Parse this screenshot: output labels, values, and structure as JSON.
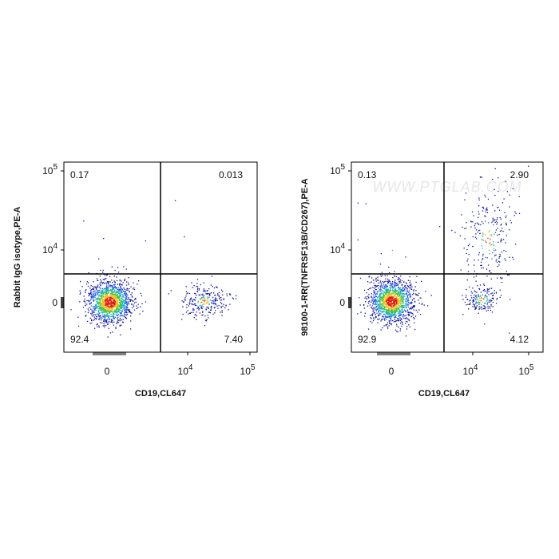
{
  "watermark": "WWW.PTGLAB.COM",
  "panels": [
    {
      "y_label": "Rabbit IgG isotype,PE-A",
      "x_label": "CD19,CL647",
      "quadrants": {
        "upper_left": "0.17",
        "upper_right": "0.013",
        "lower_left": "92.4",
        "lower_right": "7.40"
      },
      "y_ticks": [
        {
          "base": "10",
          "exp": "5"
        },
        {
          "base": "10",
          "exp": "4"
        },
        {
          "base": "0"
        }
      ],
      "x_ticks": [
        {
          "base": "0"
        },
        {
          "base": "10",
          "exp": "4"
        },
        {
          "base": "10",
          "exp": "5"
        }
      ]
    },
    {
      "y_label": "98100-1-RR(TNFRSF13B/CD267),PE-A",
      "x_label": "CD19,CL647",
      "quadrants": {
        "upper_left": "0.13",
        "upper_right": "2.90",
        "lower_left": "92.9",
        "lower_right": "4.12"
      },
      "y_ticks": [
        {
          "base": "10",
          "exp": "5"
        },
        {
          "base": "10",
          "exp": "4"
        },
        {
          "base": "0"
        }
      ],
      "x_ticks": [
        {
          "base": "0"
        },
        {
          "base": "10",
          "exp": "4"
        },
        {
          "base": "10",
          "exp": "5"
        }
      ]
    }
  ]
}
